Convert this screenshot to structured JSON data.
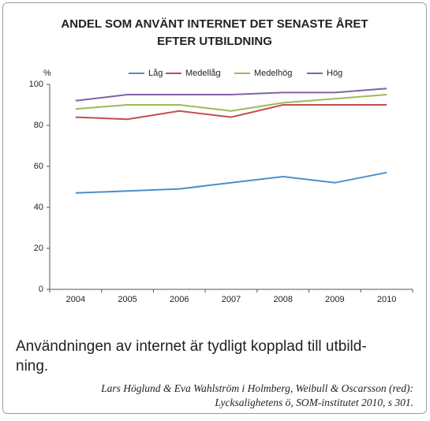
{
  "chart_data": {
    "type": "line",
    "title": [
      "ANDEL SOM ANVÄNT INTERNET DET SENASTE ÅRET",
      "EFTER UTBILDNING"
    ],
    "ylabel": "%",
    "categories": [
      "2004",
      "2005",
      "2006",
      "2007",
      "2008",
      "2009",
      "2010"
    ],
    "series": [
      {
        "name": "Låg",
        "color": "#4a8fcb",
        "values": [
          47,
          48,
          49,
          52,
          55,
          52,
          57
        ]
      },
      {
        "name": "Medellåg",
        "color": "#c0504d",
        "values": [
          84,
          83,
          87,
          84,
          90,
          90,
          90
        ]
      },
      {
        "name": "Medelhög",
        "color": "#9bbb59",
        "values": [
          88,
          90,
          90,
          87,
          91,
          93,
          95
        ]
      },
      {
        "name": "Hög",
        "color": "#8064a2",
        "values": [
          92,
          95,
          95,
          95,
          96,
          96,
          98
        ]
      }
    ],
    "ylim": [
      0,
      100
    ],
    "yticks": [
      0,
      20,
      40,
      60,
      80,
      100
    ],
    "grid": false,
    "legend": "top"
  },
  "caption": [
    "Användningen av internet är tydligt kopplad till utbild-",
    "ning."
  ],
  "source": [
    "Lars Höglund & Eva Wahlström i Holmberg, Weibull & Oscarsson (red):",
    "Lycksalighetens ö, SOM-institutet 2010, s 301."
  ]
}
